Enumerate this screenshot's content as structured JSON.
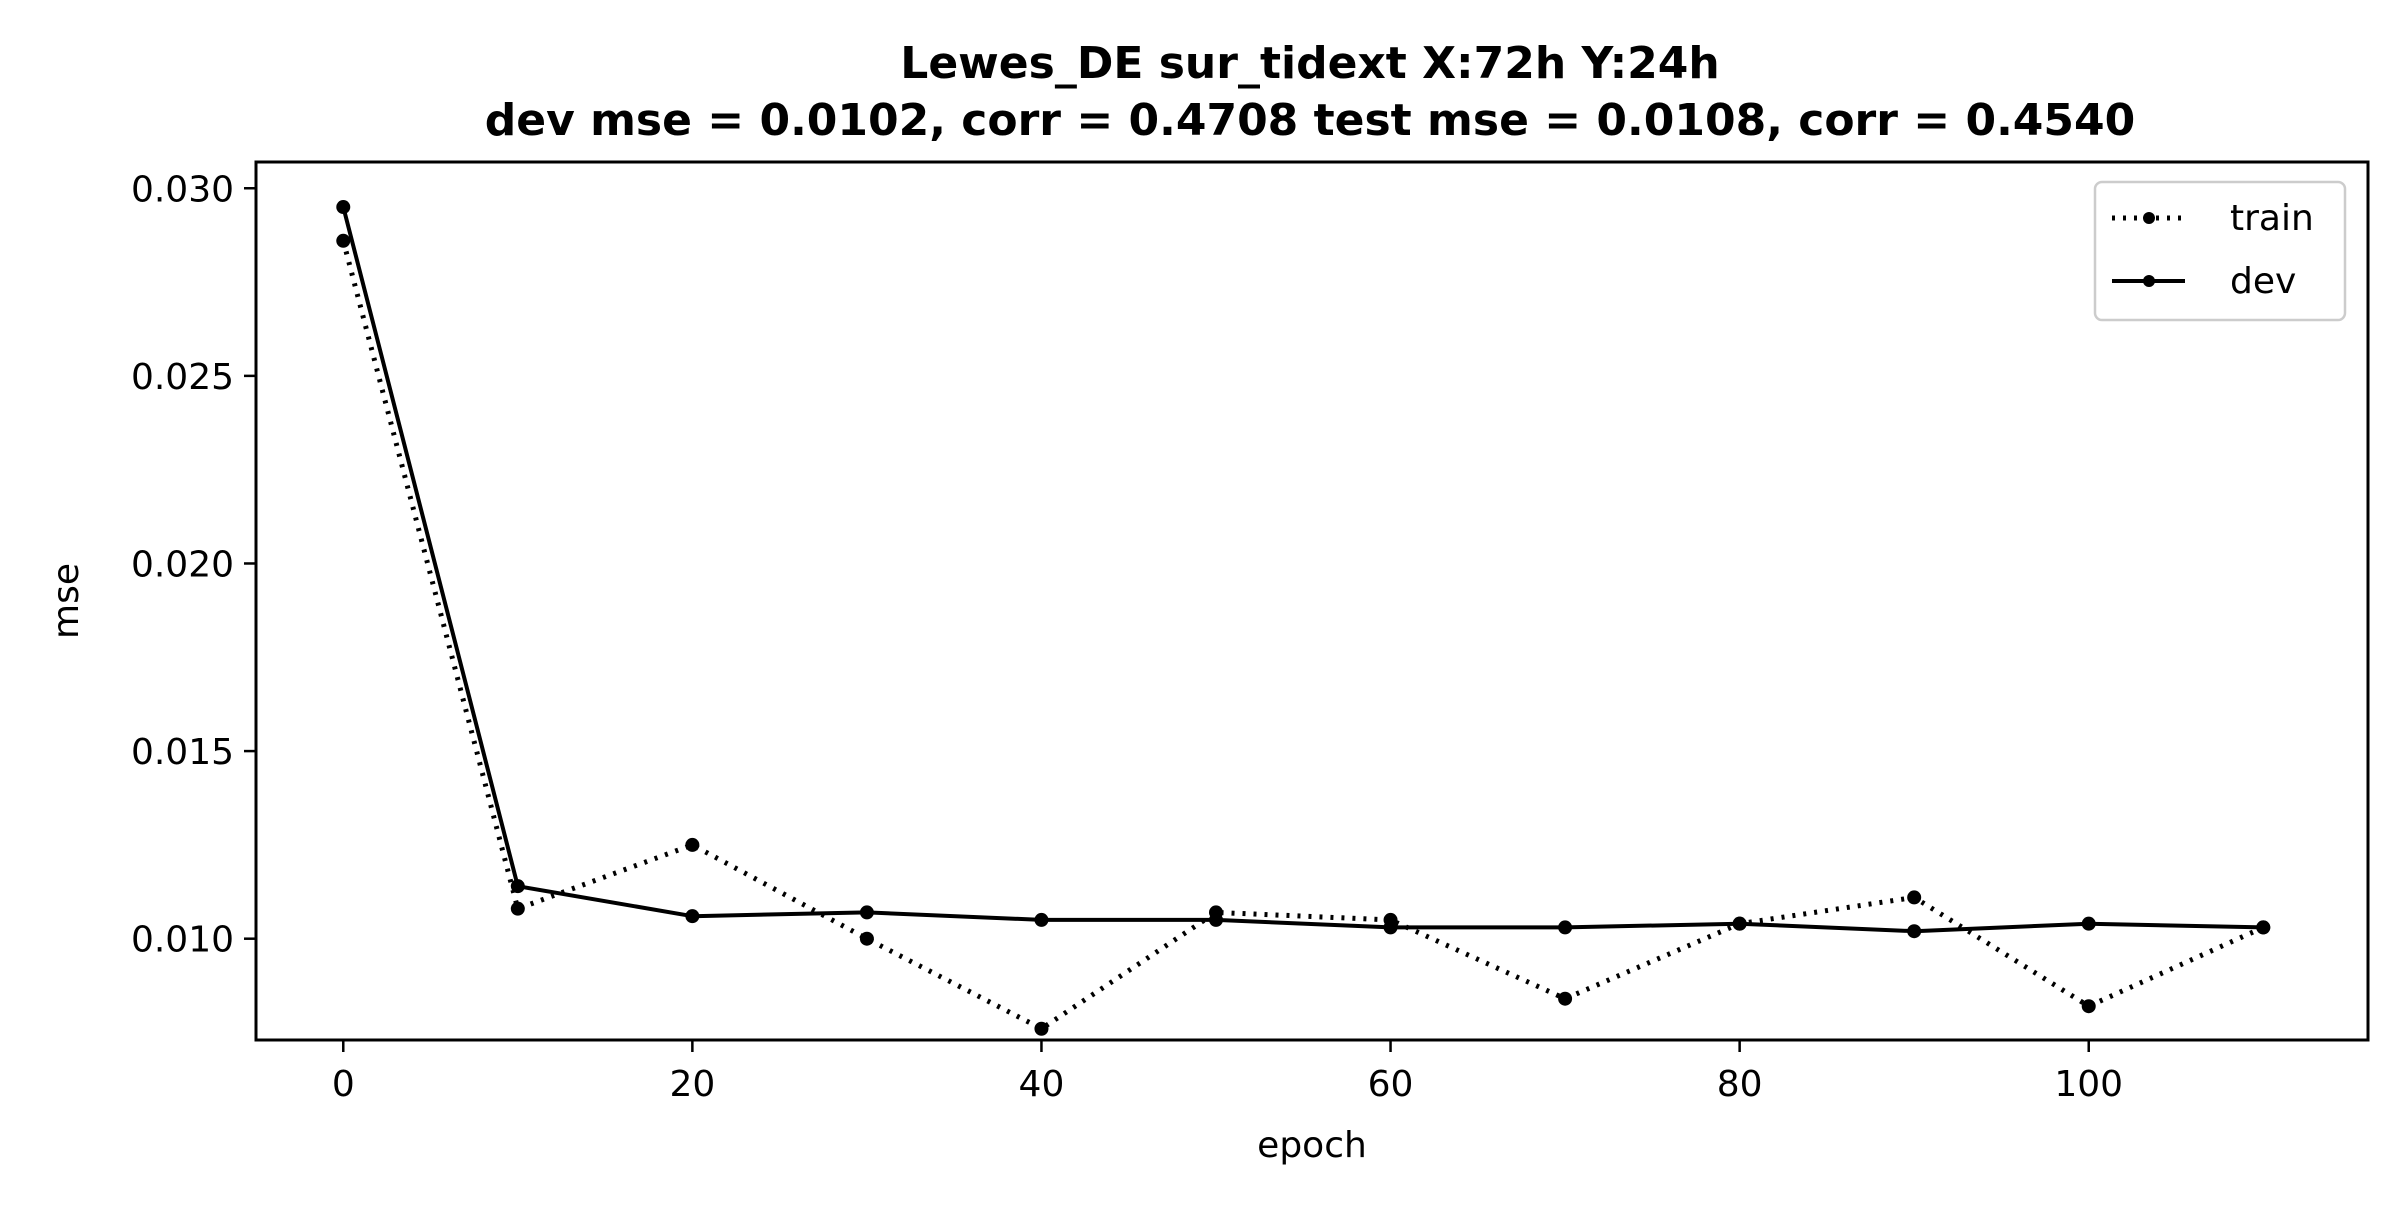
{
  "chart_data": {
    "type": "line",
    "title_line1": "Lewes_DE   sur_tidext   X:72h   Y:24h",
    "title_line2": "dev mse = 0.0102, corr = 0.4708   test mse = 0.0108, corr = 0.4540",
    "xlabel": "epoch",
    "ylabel": "mse",
    "xlim": [
      -5,
      116
    ],
    "ylim": [
      0.0073,
      0.0307
    ],
    "xticks": [
      0,
      20,
      40,
      60,
      80,
      100
    ],
    "xtick_labels": [
      "0",
      "20",
      "40",
      "60",
      "80",
      "100"
    ],
    "yticks": [
      0.01,
      0.015,
      0.02,
      0.025,
      0.03
    ],
    "ytick_labels": [
      "0.010",
      "0.015",
      "0.020",
      "0.025",
      "0.030"
    ],
    "grid": false,
    "legend_position": "top-right",
    "x": [
      0,
      10,
      20,
      30,
      40,
      50,
      60,
      70,
      80,
      90,
      100,
      110
    ],
    "series": [
      {
        "name": "train",
        "style": "dotted",
        "color": "#000000",
        "values": [
          0.0286,
          0.0108,
          0.0125,
          0.01,
          0.0076,
          0.0107,
          0.0105,
          0.0084,
          0.0104,
          0.0111,
          0.0082,
          0.0103
        ]
      },
      {
        "name": "dev",
        "style": "solid",
        "color": "#000000",
        "values": [
          0.0295,
          0.0114,
          0.0106,
          0.0107,
          0.0105,
          0.0105,
          0.0103,
          0.0103,
          0.0104,
          0.0102,
          0.0104,
          0.0103
        ]
      }
    ]
  }
}
